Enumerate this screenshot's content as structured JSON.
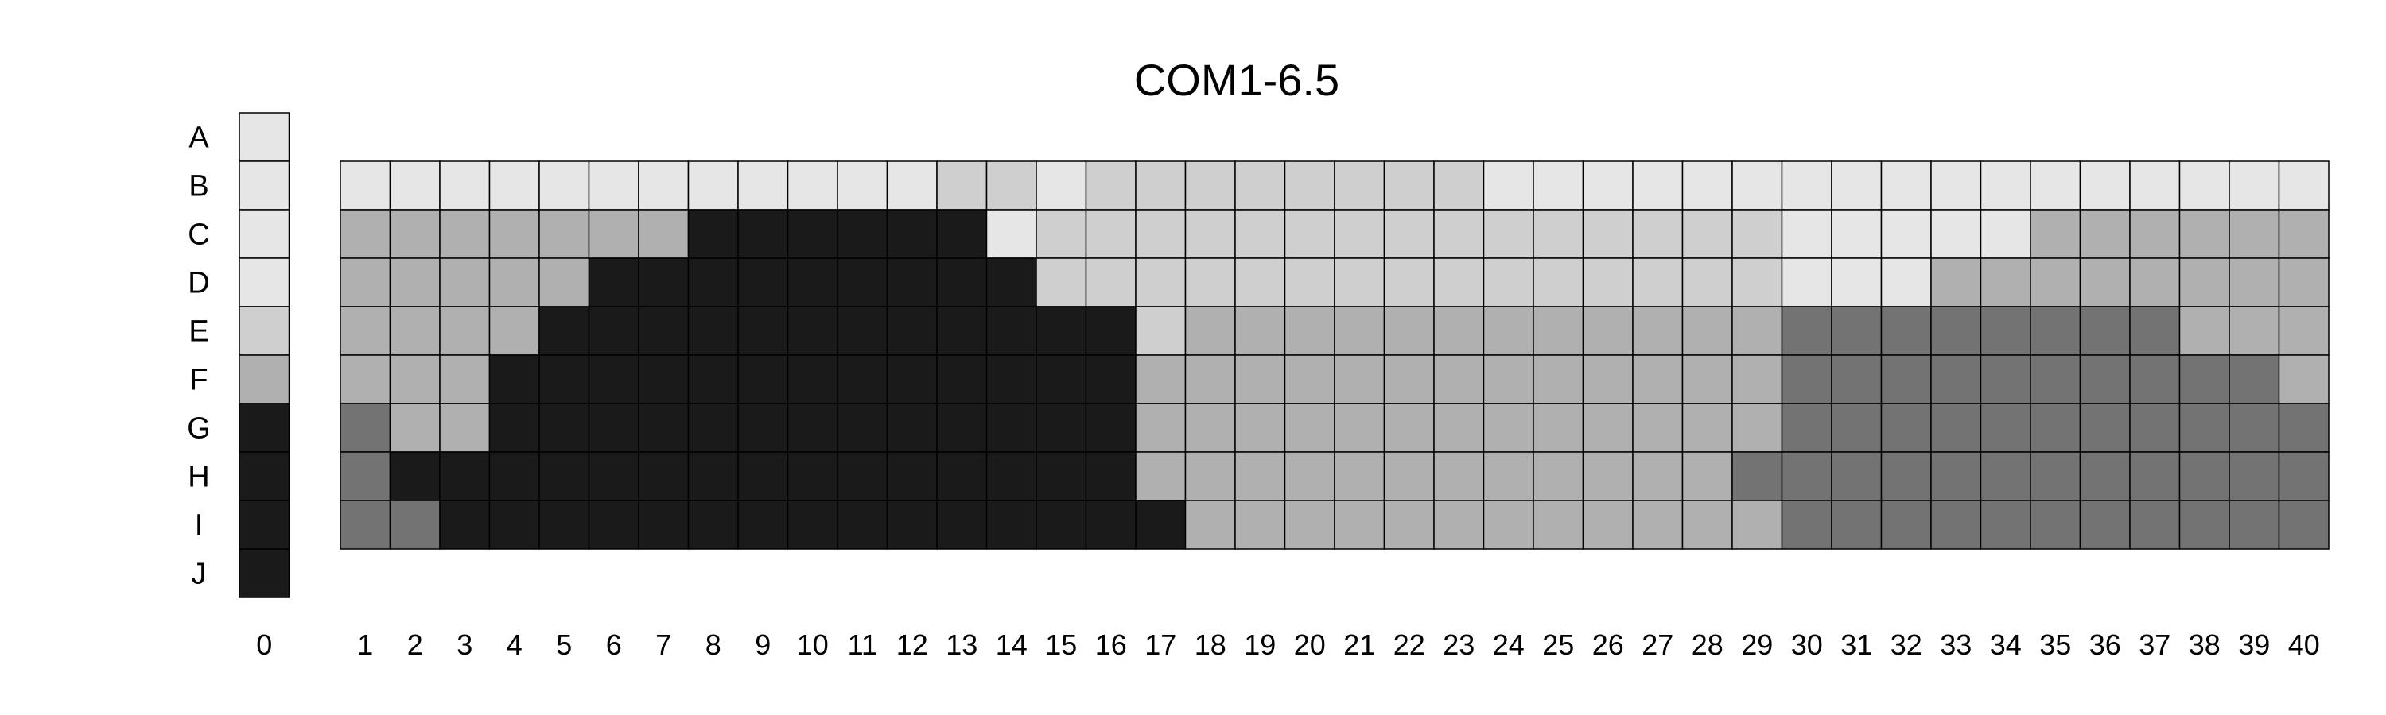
{
  "chart_data": {
    "type": "heatmap",
    "title": "COM1-6.5",
    "rows": [
      "A",
      "B",
      "C",
      "D",
      "E",
      "F",
      "G",
      "H",
      "I",
      "J"
    ],
    "reference_column": {
      "label": "0",
      "levels": [
        1,
        1,
        1,
        1,
        2,
        3,
        5,
        5,
        5,
        5
      ]
    },
    "columns": [
      "1",
      "2",
      "3",
      "4",
      "5",
      "6",
      "7",
      "8",
      "9",
      "10",
      "11",
      "12",
      "13",
      "14",
      "15",
      "16",
      "17",
      "18",
      "19",
      "20",
      "21",
      "22",
      "23",
      "24",
      "25",
      "26",
      "27",
      "28",
      "29",
      "30",
      "31",
      "32",
      "33",
      "34",
      "35",
      "36",
      "37",
      "38",
      "39",
      "40"
    ],
    "grid_rows": [
      "B",
      "C",
      "D",
      "E",
      "F",
      "G",
      "H",
      "I"
    ],
    "levels": [
      [
        1,
        1,
        1,
        1,
        1,
        1,
        1,
        1,
        1,
        1,
        1,
        1,
        2,
        2,
        1,
        2,
        2,
        2,
        2,
        2,
        2,
        2,
        2,
        1,
        1,
        1,
        1,
        1,
        1,
        1,
        1,
        1,
        1,
        1,
        1,
        1,
        1,
        1,
        1,
        1
      ],
      [
        3,
        3,
        3,
        3,
        3,
        3,
        3,
        5,
        5,
        5,
        5,
        5,
        5,
        1,
        2,
        2,
        2,
        2,
        2,
        2,
        2,
        2,
        2,
        2,
        2,
        2,
        2,
        2,
        2,
        1,
        1,
        1,
        1,
        1,
        3,
        3,
        3,
        3,
        3,
        3
      ],
      [
        3,
        3,
        3,
        3,
        3,
        5,
        5,
        5,
        5,
        5,
        5,
        5,
        5,
        5,
        2,
        2,
        2,
        2,
        2,
        2,
        2,
        2,
        2,
        2,
        2,
        2,
        2,
        2,
        2,
        1,
        1,
        1,
        3,
        3,
        3,
        3,
        3,
        3,
        3,
        3
      ],
      [
        3,
        3,
        3,
        3,
        5,
        5,
        5,
        5,
        5,
        5,
        5,
        5,
        5,
        5,
        5,
        5,
        2,
        3,
        3,
        3,
        3,
        3,
        3,
        3,
        3,
        3,
        3,
        3,
        3,
        4,
        4,
        4,
        4,
        4,
        4,
        4,
        4,
        3,
        3,
        3
      ],
      [
        3,
        3,
        3,
        5,
        5,
        5,
        5,
        5,
        5,
        5,
        5,
        5,
        5,
        5,
        5,
        5,
        3,
        3,
        3,
        3,
        3,
        3,
        3,
        3,
        3,
        3,
        3,
        3,
        3,
        4,
        4,
        4,
        4,
        4,
        4,
        4,
        4,
        4,
        4,
        3
      ],
      [
        4,
        3,
        3,
        5,
        5,
        5,
        5,
        5,
        5,
        5,
        5,
        5,
        5,
        5,
        5,
        5,
        3,
        3,
        3,
        3,
        3,
        3,
        3,
        3,
        3,
        3,
        3,
        3,
        3,
        4,
        4,
        4,
        4,
        4,
        4,
        4,
        4,
        4,
        4,
        4
      ],
      [
        4,
        5,
        5,
        5,
        5,
        5,
        5,
        5,
        5,
        5,
        5,
        5,
        5,
        5,
        5,
        5,
        3,
        3,
        3,
        3,
        3,
        3,
        3,
        3,
        3,
        3,
        3,
        3,
        4,
        4,
        4,
        4,
        4,
        4,
        4,
        4,
        4,
        4,
        4,
        4
      ],
      [
        4,
        4,
        5,
        5,
        5,
        5,
        5,
        5,
        5,
        5,
        5,
        5,
        5,
        5,
        5,
        5,
        5,
        3,
        3,
        3,
        3,
        3,
        3,
        3,
        3,
        3,
        3,
        3,
        3,
        4,
        4,
        4,
        4,
        4,
        4,
        4,
        4,
        4,
        4,
        4
      ]
    ],
    "level_colors": {
      "1": "#e6e6e6",
      "2": "#cfcfcf",
      "3": "#b0b0b0",
      "4": "#737373",
      "5": "#1a1a1a"
    },
    "legend": false,
    "grid": true
  }
}
